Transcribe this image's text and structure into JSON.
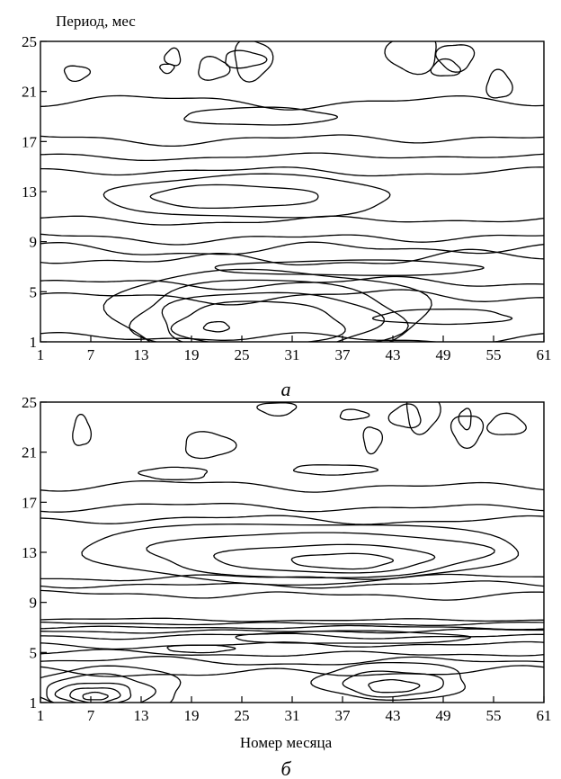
{
  "chart_data": [
    {
      "type": "contour",
      "panel_label": "а",
      "ylabel": "Период, мес",
      "xlabel": "",
      "x_ticks": [
        1,
        7,
        13,
        19,
        25,
        31,
        37,
        43,
        49,
        55,
        61
      ],
      "y_ticks": [
        1,
        5,
        9,
        13,
        17,
        21,
        25
      ],
      "xlim": [
        1,
        61
      ],
      "ylim": [
        1,
        25
      ],
      "grid": false,
      "features": [
        {
          "kind": "closed",
          "cx": 27,
          "cy": 2.4,
          "rx": 10,
          "ry": 1.8
        },
        {
          "kind": "closed",
          "cx": 28,
          "cy": 2.6,
          "rx": 13,
          "ry": 2.4
        },
        {
          "kind": "closed",
          "cx": 28,
          "cy": 2.9,
          "rx": 16,
          "ry": 3.0
        },
        {
          "kind": "closed",
          "cx": 28,
          "cy": 3.2,
          "rx": 19,
          "ry": 3.6
        },
        {
          "kind": "closed",
          "cx": 22,
          "cy": 2.2,
          "rx": 1.5,
          "ry": 0.4
        },
        {
          "kind": "closed",
          "cx": 24,
          "cy": 12.6,
          "rx": 10,
          "ry": 0.9
        },
        {
          "kind": "closed",
          "cx": 26,
          "cy": 12.6,
          "rx": 17,
          "ry": 1.7
        },
        {
          "kind": "closed",
          "cx": 27,
          "cy": 19.0,
          "rx": 9,
          "ry": 0.7
        },
        {
          "kind": "closed",
          "cx": 38,
          "cy": 6.9,
          "rx": 16,
          "ry": 0.6
        },
        {
          "kind": "closed",
          "cx": 49,
          "cy": 3.0,
          "rx": 8,
          "ry": 0.6
        },
        {
          "kind": "band",
          "y": 1.3,
          "a": 0.5
        },
        {
          "kind": "band",
          "y": 4.6,
          "a": 0.6
        },
        {
          "kind": "band",
          "y": 5.7,
          "a": 0.5
        },
        {
          "kind": "band",
          "y": 7.6,
          "a": 0.7
        },
        {
          "kind": "band",
          "y": 8.4,
          "a": 0.6
        },
        {
          "kind": "band",
          "y": 9.3,
          "a": 0.5
        },
        {
          "kind": "band",
          "y": 10.7,
          "a": 0.4
        },
        {
          "kind": "band",
          "y": 14.6,
          "a": 0.4
        },
        {
          "kind": "band",
          "y": 15.8,
          "a": 0.3
        },
        {
          "kind": "band",
          "y": 17.2,
          "a": 0.5
        },
        {
          "kind": "band",
          "y": 20.2,
          "a": 0.6
        }
      ]
    },
    {
      "type": "contour",
      "panel_label": "б",
      "ylabel": "",
      "xlabel": "Номер месяца",
      "x_ticks": [
        1,
        7,
        13,
        19,
        25,
        31,
        37,
        43,
        49,
        55,
        61
      ],
      "y_ticks": [
        1,
        5,
        9,
        13,
        17,
        21,
        25
      ],
      "xlim": [
        1,
        61
      ],
      "ylim": [
        1,
        25
      ],
      "grid": false,
      "features": [
        {
          "kind": "closed",
          "cx": 7.5,
          "cy": 1.5,
          "rx": 1.5,
          "ry": 0.3
        },
        {
          "kind": "closed",
          "cx": 7.5,
          "cy": 1.6,
          "rx": 3,
          "ry": 0.6
        },
        {
          "kind": "closed",
          "cx": 7.5,
          "cy": 1.7,
          "rx": 4.5,
          "ry": 0.9
        },
        {
          "kind": "closed",
          "cx": 8,
          "cy": 1.9,
          "rx": 6.5,
          "ry": 1.3
        },
        {
          "kind": "closed",
          "cx": 9,
          "cy": 2.1,
          "rx": 9,
          "ry": 1.8
        },
        {
          "kind": "closed",
          "cx": 43,
          "cy": 2.3,
          "rx": 3,
          "ry": 0.5
        },
        {
          "kind": "closed",
          "cx": 43,
          "cy": 2.5,
          "rx": 6,
          "ry": 1.0
        },
        {
          "kind": "closed",
          "cx": 43,
          "cy": 2.7,
          "rx": 9,
          "ry": 1.5
        },
        {
          "kind": "closed",
          "cx": 37,
          "cy": 12.3,
          "rx": 6,
          "ry": 0.6
        },
        {
          "kind": "closed",
          "cx": 35,
          "cy": 12.5,
          "rx": 13,
          "ry": 1.1
        },
        {
          "kind": "closed",
          "cx": 34,
          "cy": 12.8,
          "rx": 20,
          "ry": 1.8
        },
        {
          "kind": "closed",
          "cx": 32,
          "cy": 13.0,
          "rx": 26,
          "ry": 2.4
        },
        {
          "kind": "closed",
          "cx": 17,
          "cy": 19.3,
          "rx": 4,
          "ry": 0.5
        },
        {
          "kind": "closed",
          "cx": 36,
          "cy": 19.6,
          "rx": 5,
          "ry": 0.4
        },
        {
          "kind": "closed",
          "cx": 20,
          "cy": 5.3,
          "rx": 4,
          "ry": 0.3
        },
        {
          "kind": "closed",
          "cx": 38,
          "cy": 6.2,
          "rx": 14,
          "ry": 0.5
        },
        {
          "kind": "band",
          "y": 3.4,
          "a": 0.5
        },
        {
          "kind": "band",
          "y": 4.3,
          "a": 0.4
        },
        {
          "kind": "band",
          "y": 4.9,
          "a": 0.3
        },
        {
          "kind": "band",
          "y": 5.6,
          "a": 0.3
        },
        {
          "kind": "band",
          "y": 6.3,
          "a": 0.25
        },
        {
          "kind": "band",
          "y": 6.7,
          "a": 0.2
        },
        {
          "kind": "band",
          "y": 7.0,
          "a": 0.15
        },
        {
          "kind": "band",
          "y": 7.3,
          "a": 0.15
        },
        {
          "kind": "band",
          "y": 7.6,
          "a": 0.15
        },
        {
          "kind": "band",
          "y": 9.6,
          "a": 0.4
        },
        {
          "kind": "band",
          "y": 10.4,
          "a": 0.3
        },
        {
          "kind": "band",
          "y": 11.0,
          "a": 0.3
        },
        {
          "kind": "band",
          "y": 15.6,
          "a": 0.4
        },
        {
          "kind": "band",
          "y": 16.6,
          "a": 0.4
        },
        {
          "kind": "band",
          "y": 18.3,
          "a": 0.5
        }
      ]
    }
  ]
}
